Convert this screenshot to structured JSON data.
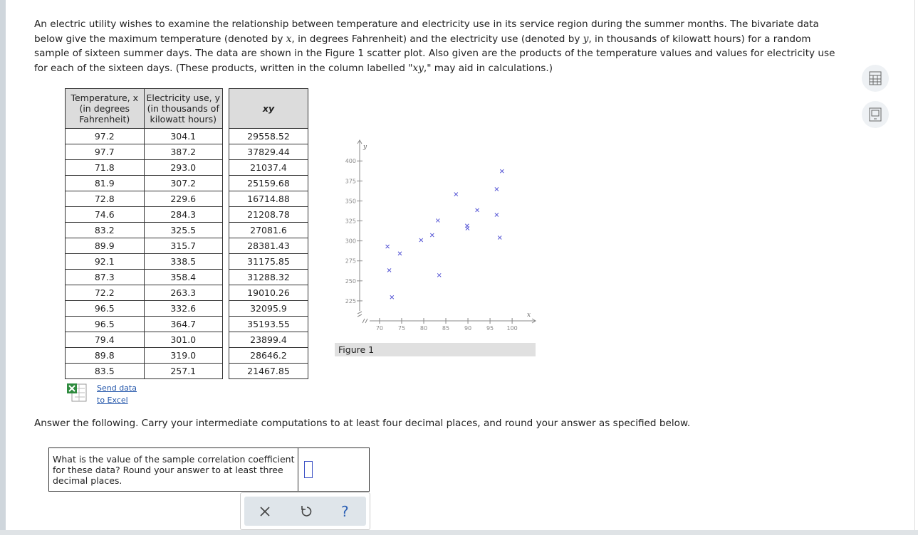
{
  "intro": [
    "An electric utility wishes to examine the relationship between temperature and electricity use in its service region during the summer months. The bivariate data below give the maximum temperature (denoted by ",
    "x",
    ", in degrees Fahrenheit) and the electricity use (denoted by ",
    "y",
    ", in thousands of kilowatt hours) for a random sample of sixteen summer days. The data are shown in the Figure 1 scatter plot. Also given are the products of the temperature values and values for electricity use for each of the sixteen days. (These products, written in the column labelled \"",
    "xy",
    ",\" may aid in calculations.)"
  ],
  "table": {
    "headers": [
      [
        "Temperature, x",
        "(in degrees",
        "Fahrenheit)"
      ],
      [
        "Electricity use, y",
        "(in thousands of",
        "kilowatt hours)"
      ],
      [
        "xy"
      ]
    ],
    "rows": [
      [
        "97.2",
        "304.1",
        "29558.52"
      ],
      [
        "97.7",
        "387.2",
        "37829.44"
      ],
      [
        "71.8",
        "293.0",
        "21037.4"
      ],
      [
        "81.9",
        "307.2",
        "25159.68"
      ],
      [
        "72.8",
        "229.6",
        "16714.88"
      ],
      [
        "74.6",
        "284.3",
        "21208.78"
      ],
      [
        "83.2",
        "325.5",
        "27081.6"
      ],
      [
        "89.9",
        "315.7",
        "28381.43"
      ],
      [
        "92.1",
        "338.5",
        "31175.85"
      ],
      [
        "87.3",
        "358.4",
        "31288.32"
      ],
      [
        "72.2",
        "263.3",
        "19010.26"
      ],
      [
        "96.5",
        "332.6",
        "32095.9"
      ],
      [
        "96.5",
        "364.7",
        "35193.55"
      ],
      [
        "79.4",
        "301.0",
        "23899.4"
      ],
      [
        "89.8",
        "319.0",
        "28646.2"
      ],
      [
        "83.5",
        "257.1",
        "21467.85"
      ]
    ]
  },
  "chart_data": {
    "type": "scatter",
    "caption": "Figure 1",
    "xlabel": "x",
    "ylabel": "y",
    "color": "#5a5ad6",
    "x": [
      97.2,
      97.7,
      71.8,
      81.9,
      72.8,
      74.6,
      83.2,
      89.9,
      92.1,
      87.3,
      72.2,
      96.5,
      96.5,
      79.4,
      89.8,
      83.5
    ],
    "values": [
      304.1,
      387.2,
      293.0,
      307.2,
      229.6,
      284.3,
      325.5,
      315.7,
      338.5,
      358.4,
      263.3,
      332.6,
      364.7,
      301.0,
      319.0,
      257.1
    ],
    "xlim": [
      65.5,
      105.3
    ],
    "ylim": [
      200,
      426
    ],
    "xticks": [
      70,
      75,
      80,
      85,
      90,
      95,
      100
    ],
    "yticks": [
      225,
      250,
      275,
      300,
      325,
      350,
      375,
      400
    ]
  },
  "excel_link": [
    "Send data",
    "to Excel"
  ],
  "instructions": "Answer the following. Carry your intermediate computations to at least four decimal places, and round your answer as specified below.",
  "question": "What is the value of the sample correlation coefficient for these data? Round your answer to at least three decimal places.",
  "toolbar": {
    "help": "?"
  }
}
